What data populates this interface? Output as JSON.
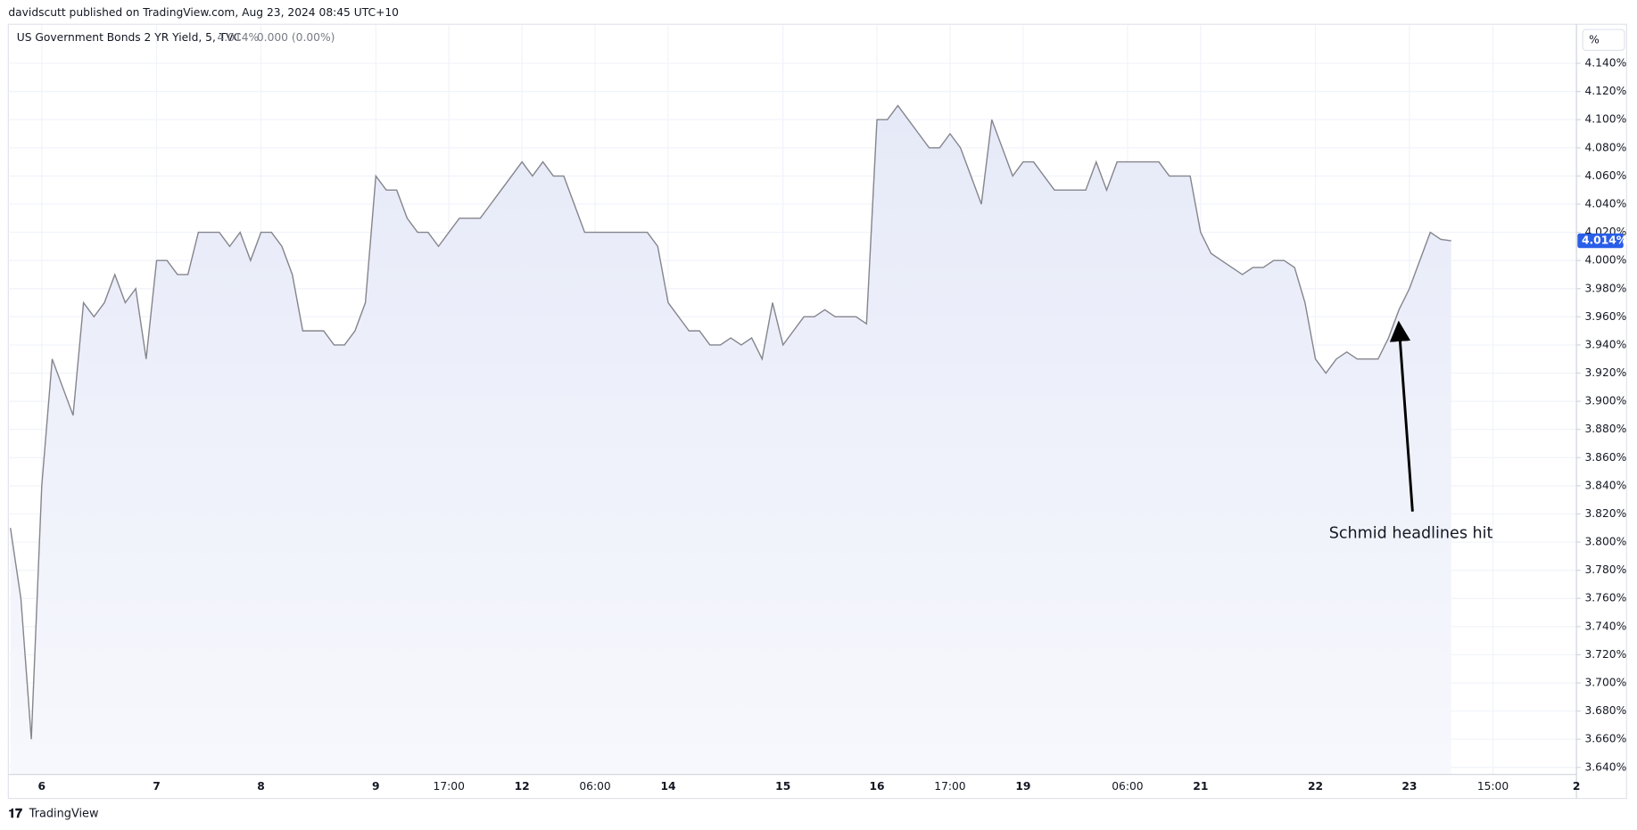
{
  "header": {
    "published": "davidscutt published on TradingView.com, Aug 23, 2024 08:45 UTC+10",
    "price": "4.014%",
    "change": "0.000 (0.00%)",
    "unit_button": "%"
  },
  "footer": {
    "brand": "TradingView"
  },
  "chart_data": {
    "type": "line",
    "series": [
      {
        "name": "US Government Bonds 2 YR Yield, 5, TVC",
        "color": "#85858d",
        "values": [
          3.81,
          3.76,
          3.66,
          3.84,
          3.93,
          3.91,
          3.89,
          3.97,
          3.96,
          3.97,
          3.99,
          3.97,
          3.98,
          3.93,
          4.0,
          4.0,
          3.99,
          3.99,
          4.02,
          4.02,
          4.02,
          4.01,
          4.02,
          4.0,
          4.02,
          4.02,
          4.01,
          3.99,
          3.95,
          3.95,
          3.95,
          3.94,
          3.94,
          3.95,
          3.97,
          4.06,
          4.05,
          4.05,
          4.03,
          4.02,
          4.02,
          4.01,
          4.02,
          4.03,
          4.03,
          4.03,
          4.04,
          4.05,
          4.06,
          4.07,
          4.06,
          4.07,
          4.06,
          4.06,
          4.04,
          4.02,
          4.02,
          4.02,
          4.02,
          4.02,
          4.02,
          4.02,
          4.01,
          3.97,
          3.96,
          3.95,
          3.95,
          3.94,
          3.94,
          3.945,
          3.94,
          3.945,
          3.93,
          3.97,
          3.94,
          3.95,
          3.96,
          3.96,
          3.965,
          3.96,
          3.96,
          3.96,
          3.955,
          4.1,
          4.1,
          4.11,
          4.1,
          4.09,
          4.08,
          4.08,
          4.09,
          4.08,
          4.06,
          4.04,
          4.1,
          4.08,
          4.06,
          4.07,
          4.07,
          4.06,
          4.05,
          4.05,
          4.05,
          4.05,
          4.07,
          4.05,
          4.07,
          4.07,
          4.07,
          4.07,
          4.07,
          4.06,
          4.06,
          4.06,
          4.02,
          4.005,
          4.0,
          3.995,
          3.99,
          3.995,
          3.995,
          4.0,
          4.0,
          3.995,
          3.97,
          3.93,
          3.92,
          3.93,
          3.935,
          3.93,
          3.93,
          3.93,
          3.945,
          3.965,
          3.98,
          4.0,
          4.02,
          4.015,
          4.014,
          null,
          null,
          null,
          null,
          null,
          null,
          null,
          null,
          null,
          null,
          null,
          null
        ]
      }
    ],
    "categories": [
      null,
      null,
      null,
      "6",
      null,
      null,
      null,
      null,
      null,
      null,
      null,
      null,
      null,
      null,
      "7",
      null,
      null,
      null,
      null,
      null,
      null,
      null,
      null,
      null,
      "8",
      null,
      null,
      null,
      null,
      null,
      null,
      null,
      null,
      null,
      null,
      "9",
      null,
      null,
      null,
      null,
      null,
      null,
      "17:00",
      null,
      null,
      null,
      null,
      null,
      null,
      "12",
      null,
      null,
      null,
      null,
      null,
      null,
      "06:00",
      null,
      null,
      null,
      null,
      null,
      null,
      "14",
      null,
      null,
      null,
      null,
      null,
      null,
      null,
      null,
      null,
      null,
      "15",
      null,
      null,
      null,
      null,
      null,
      null,
      null,
      null,
      "16",
      null,
      null,
      null,
      null,
      null,
      null,
      "17:00",
      null,
      null,
      null,
      null,
      null,
      null,
      "19",
      null,
      null,
      null,
      null,
      null,
      null,
      null,
      null,
      null,
      "06:00",
      null,
      null,
      null,
      null,
      null,
      null,
      "21",
      null,
      null,
      null,
      null,
      null,
      null,
      null,
      null,
      null,
      null,
      "22",
      null,
      null,
      null,
      null,
      null,
      null,
      null,
      null,
      "23",
      null,
      null,
      null,
      null,
      null,
      null,
      null,
      "15:00",
      null,
      null,
      null,
      null,
      null,
      null,
      null,
      "2"
    ],
    "price_label": "4.014%",
    "annotation": "Schmid headlines hit",
    "ylim": [
      3.635,
      4.167
    ],
    "yticks": [
      {
        "value": 3.64,
        "label": "3.640%"
      },
      {
        "value": 3.66,
        "label": "3.660%"
      },
      {
        "value": 3.68,
        "label": "3.680%"
      },
      {
        "value": 3.7,
        "label": "3.700%"
      },
      {
        "value": 3.72,
        "label": "3.720%"
      },
      {
        "value": 3.74,
        "label": "3.740%"
      },
      {
        "value": 3.76,
        "label": "3.760%"
      },
      {
        "value": 3.78,
        "label": "3.780%"
      },
      {
        "value": 3.8,
        "label": "3.800%"
      },
      {
        "value": 3.82,
        "label": "3.820%"
      },
      {
        "value": 3.84,
        "label": "3.840%"
      },
      {
        "value": 3.86,
        "label": "3.860%"
      },
      {
        "value": 3.88,
        "label": "3.880%"
      },
      {
        "value": 3.9,
        "label": "3.900%"
      },
      {
        "value": 3.92,
        "label": "3.920%"
      },
      {
        "value": 3.94,
        "label": "3.940%"
      },
      {
        "value": 3.96,
        "label": "3.960%"
      },
      {
        "value": 3.98,
        "label": "3.980%"
      },
      {
        "value": 4.0,
        "label": "4.000%"
      },
      {
        "value": 4.02,
        "label": "4.020%"
      },
      {
        "value": 4.04,
        "label": "4.040%"
      },
      {
        "value": 4.06,
        "label": "4.060%"
      },
      {
        "value": 4.08,
        "label": "4.080%"
      },
      {
        "value": 4.1,
        "label": "4.100%"
      },
      {
        "value": 4.12,
        "label": "4.120%"
      },
      {
        "value": 4.14,
        "label": "4.140%"
      }
    ],
    "grid": true
  }
}
